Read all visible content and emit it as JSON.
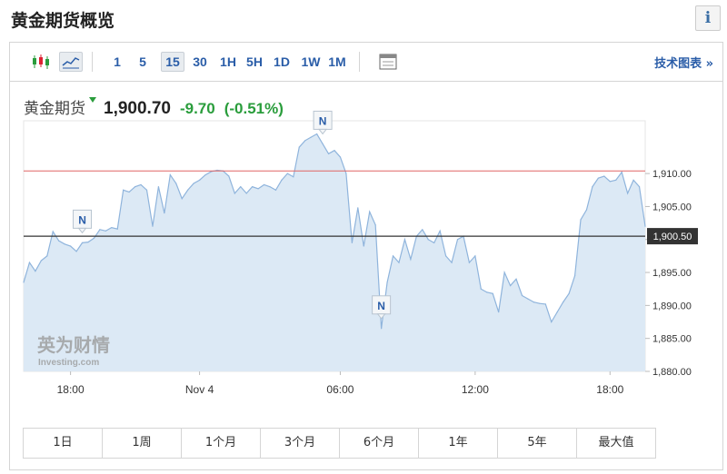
{
  "page": {
    "title": "黄金期货概览",
    "info_label": "i"
  },
  "toolbar": {
    "icons": [
      "candlestick-icon",
      "line-chart-icon",
      "calendar-icon"
    ],
    "intervals": [
      "1",
      "5",
      "15",
      "30",
      "1H",
      "5H",
      "1D",
      "1W",
      "1M"
    ],
    "active_interval": "15",
    "tech_chart_link": "技术图表 »"
  },
  "quote": {
    "name": "黄金期货",
    "price": "1,900.70",
    "change": "-9.70",
    "change_pct": "(-0.51%)",
    "color_up": "#2a9d3c"
  },
  "watermark": {
    "cn": "英为财情",
    "en": "Investing.com"
  },
  "range_tabs": [
    "1日",
    "1周",
    "1个月",
    "3个月",
    "6个月",
    "1年",
    "5年",
    "最大值"
  ],
  "chart_data": {
    "type": "area",
    "title": "",
    "xlabel": "",
    "ylabel": "",
    "x_ticks": [
      "18:00",
      "Nov 4",
      "06:00",
      "12:00",
      "18:00"
    ],
    "y_ticks": [
      "1,880.00",
      "1,885.00",
      "1,890.00",
      "1,895.00",
      "1,900.00",
      "1,905.00",
      "1,910.00"
    ],
    "ylim": [
      1880,
      1918
    ],
    "x": [
      0,
      0.5,
      1,
      1.5,
      2,
      2.5,
      3,
      3.5,
      4,
      4.5,
      5,
      5.5,
      6,
      6.5,
      7,
      7.5,
      8,
      8.5,
      9,
      9.5,
      10,
      10.5,
      11,
      11.5,
      12,
      12.5,
      13,
      13.5,
      14,
      14.5,
      15,
      15.5,
      16,
      16.5,
      17,
      17.5,
      18,
      18.5,
      19,
      19.5,
      20,
      20.5,
      21,
      21.5,
      22,
      22.5,
      23,
      23.5,
      24,
      24.5,
      25,
      25.5,
      26,
      26.5,
      27,
      27.5,
      28,
      28.5,
      29,
      29.5,
      30,
      30.5,
      31,
      31.5,
      32,
      32.5,
      33,
      33.5,
      34,
      34.5,
      35,
      35.5,
      36,
      36.5,
      37,
      37.5,
      38,
      38.5,
      39,
      39.5,
      40,
      40.5,
      41,
      41.5,
      42,
      42.5,
      43,
      43.5,
      44,
      44.5,
      45,
      45.5,
      46,
      46.5,
      47,
      47.5,
      48,
      48.5,
      49,
      49.5,
      50,
      50.5,
      51,
      51.5,
      52,
      52.5,
      53
    ],
    "values": [
      1893.5,
      1896.5,
      1895.2,
      1896.8,
      1897.5,
      1901.2,
      1899.8,
      1899.3,
      1899.0,
      1898.2,
      1899.5,
      1899.6,
      1900.2,
      1901.5,
      1901.3,
      1901.8,
      1901.6,
      1907.5,
      1907.2,
      1908.0,
      1908.3,
      1907.5,
      1902.0,
      1908.0,
      1904.0,
      1909.8,
      1908.5,
      1906.2,
      1907.5,
      1908.5,
      1909.0,
      1909.8,
      1910.3,
      1910.5,
      1910.4,
      1909.6,
      1907.0,
      1908.0,
      1907.0,
      1908.0,
      1907.7,
      1908.3,
      1908.0,
      1907.5,
      1909.0,
      1910.0,
      1909.5,
      1914.0,
      1915.0,
      1915.5,
      1916.0,
      1914.5,
      1913.0,
      1913.5,
      1912.5,
      1910.0,
      1899.5,
      1904.8,
      1899.0,
      1904.2,
      1902.2,
      1886.5,
      1893.5,
      1897.5,
      1896.5,
      1900.0,
      1897.0,
      1900.5,
      1901.5,
      1900.0,
      1899.5,
      1901.3,
      1897.5,
      1896.5,
      1900.0,
      1900.5,
      1896.5,
      1897.5,
      1892.5,
      1892.0,
      1891.8,
      1889.0,
      1895.0,
      1893.0,
      1894.0,
      1891.5,
      1891.0,
      1890.5,
      1890.3,
      1890.2,
      1887.5,
      1889.0,
      1890.5,
      1891.8,
      1894.5,
      1903.0,
      1904.5,
      1908.0,
      1909.3,
      1909.6,
      1908.8,
      1909.0,
      1910.2,
      1907.0,
      1909.0,
      1908.0,
      1902.0
    ],
    "hline_prev_close": 1910.4,
    "hline_current": 1900.5,
    "current_label": "1,900.50",
    "news_markers": [
      {
        "label": "N",
        "x": 5.0
      },
      {
        "label": "N",
        "x": 25.5
      },
      {
        "label": "N",
        "x": 30.5
      }
    ],
    "colors": {
      "area_fill": "#dce9f5",
      "area_line": "#8fb4dc",
      "prev_close_line": "#e06565",
      "current_line": "#333333",
      "grid": "#e6e6e6"
    }
  }
}
